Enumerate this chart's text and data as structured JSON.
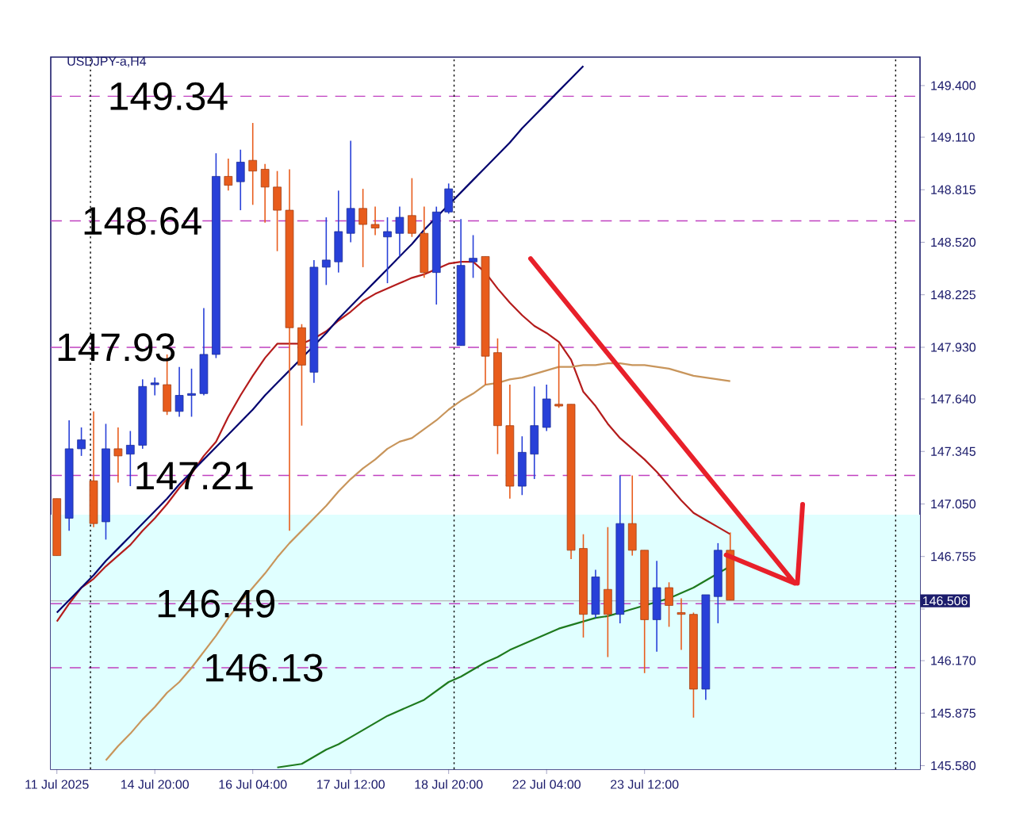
{
  "chart_data": {
    "type": "candlestick",
    "title": "USDJPY-a,H4",
    "categories": [
      "11 Jul 2025",
      null,
      null,
      null,
      null,
      null,
      null,
      null,
      "14 Jul 20:00",
      null,
      null,
      null,
      null,
      null,
      null,
      null,
      "16 Jul 04:00",
      null,
      null,
      null,
      null,
      null,
      null,
      null,
      "17 Jul 12:00",
      null,
      null,
      null,
      null,
      null,
      null,
      null,
      "18 Jul 20:00",
      null,
      null,
      null,
      null,
      null,
      null,
      null,
      "22 Jul 04:00",
      null,
      null,
      null,
      null,
      null,
      null,
      null,
      "23 Jul 12:00",
      null,
      null,
      null,
      null,
      null,
      null,
      null,
      null,
      null,
      null,
      null,
      null,
      null,
      null,
      null,
      null,
      null,
      null,
      null,
      null,
      null,
      null
    ],
    "ohlc": [
      [
        147.08,
        147.08,
        146.76,
        146.76
      ],
      [
        146.97,
        147.52,
        146.9,
        147.36
      ],
      [
        147.36,
        147.48,
        147.32,
        147.41
      ],
      [
        147.18,
        147.57,
        146.92,
        146.94
      ],
      [
        146.95,
        147.5,
        146.85,
        147.36
      ],
      [
        147.36,
        147.48,
        147.17,
        147.32
      ],
      [
        147.33,
        147.46,
        147.15,
        147.38
      ],
      [
        147.38,
        147.75,
        147.36,
        147.71
      ],
      [
        147.72,
        147.76,
        147.66,
        147.73
      ],
      [
        147.72,
        147.89,
        147.55,
        147.57
      ],
      [
        147.57,
        147.82,
        147.54,
        147.66
      ],
      [
        147.66,
        147.81,
        147.54,
        147.67
      ],
      [
        147.67,
        148.15,
        147.66,
        147.89
      ],
      [
        147.89,
        149.02,
        147.87,
        148.89
      ],
      [
        148.89,
        148.99,
        148.81,
        148.84
      ],
      [
        148.86,
        149.04,
        148.7,
        148.97
      ],
      [
        148.98,
        149.19,
        148.73,
        148.92
      ],
      [
        148.93,
        148.96,
        148.63,
        148.83
      ],
      [
        148.83,
        148.92,
        148.47,
        148.7
      ],
      [
        148.7,
        148.93,
        146.9,
        148.04
      ],
      [
        148.04,
        148.06,
        147.49,
        147.83
      ],
      [
        147.79,
        148.42,
        147.73,
        148.38
      ],
      [
        148.38,
        148.66,
        148.28,
        148.42
      ],
      [
        148.41,
        148.81,
        148.35,
        148.58
      ],
      [
        148.57,
        149.09,
        148.52,
        148.71
      ],
      [
        148.71,
        148.82,
        148.38,
        148.62
      ],
      [
        148.62,
        148.72,
        148.56,
        148.6
      ],
      [
        148.55,
        148.66,
        148.29,
        148.58
      ],
      [
        148.57,
        148.72,
        148.44,
        148.66
      ],
      [
        148.67,
        148.88,
        148.55,
        148.57
      ],
      [
        148.57,
        148.72,
        148.32,
        148.35
      ],
      [
        148.35,
        148.72,
        148.17,
        148.69
      ],
      [
        148.69,
        148.85,
        148.68,
        148.82
      ],
      [
        147.94,
        148.65,
        147.94,
        148.39
      ],
      [
        148.41,
        148.56,
        148.32,
        148.43
      ],
      [
        148.44,
        148.44,
        147.72,
        147.88
      ],
      [
        147.9,
        147.98,
        147.33,
        147.49
      ],
      [
        147.49,
        147.72,
        147.08,
        147.15
      ],
      [
        147.15,
        147.43,
        147.1,
        147.34
      ],
      [
        147.33,
        147.71,
        147.19,
        147.49
      ],
      [
        147.48,
        147.72,
        147.46,
        147.64
      ],
      [
        147.61,
        147.95,
        147.59,
        147.6
      ],
      [
        147.61,
        147.61,
        146.74,
        146.79
      ],
      [
        146.8,
        146.88,
        146.3,
        146.43
      ],
      [
        146.43,
        146.68,
        146.41,
        146.64
      ],
      [
        146.57,
        146.92,
        146.19,
        146.43
      ],
      [
        146.43,
        147.21,
        146.38,
        146.94
      ],
      [
        146.94,
        147.21,
        146.76,
        146.79
      ],
      [
        146.79,
        146.79,
        146.1,
        146.4
      ],
      [
        146.4,
        146.73,
        146.22,
        146.58
      ],
      [
        146.58,
        146.61,
        146.36,
        146.48
      ],
      [
        146.44,
        146.52,
        146.23,
        146.43
      ],
      [
        146.43,
        146.44,
        145.85,
        146.01
      ],
      [
        146.01,
        146.54,
        145.95,
        146.54
      ],
      [
        146.53,
        146.83,
        146.38,
        146.79
      ],
      [
        146.79,
        146.89,
        146.51,
        146.51
      ],
      null,
      null,
      null,
      null,
      null,
      null,
      null,
      null,
      null,
      null,
      null,
      null,
      null,
      null,
      null
    ],
    "colors": [
      "#e85c1c",
      "#2840d8",
      "#2840d8",
      "#e85c1c",
      "#2840d8",
      "#e85c1c",
      "#2840d8",
      "#2840d8",
      "#2840d8",
      "#e85c1c",
      "#2840d8",
      "#2840d8",
      "#2840d8",
      "#2840d8",
      "#e85c1c",
      "#2840d8",
      "#e85c1c",
      "#e85c1c",
      "#e85c1c",
      "#e85c1c",
      "#e85c1c",
      "#2840d8",
      "#2840d8",
      "#2840d8",
      "#2840d8",
      "#e85c1c",
      "#e85c1c",
      "#2840d8",
      "#2840d8",
      "#e85c1c",
      "#e85c1c",
      "#2840d8",
      "#2840d8",
      "#2840d8",
      "#2840d8",
      "#e85c1c",
      "#e85c1c",
      "#e85c1c",
      "#2840d8",
      "#2840d8",
      "#2840d8",
      "#e85c1c",
      "#e85c1c",
      "#e85c1c",
      "#2840d8",
      "#e85c1c",
      "#2840d8",
      "#e85c1c",
      "#e85c1c",
      "#2840d8",
      "#e85c1c",
      "#e85c1c",
      "#e85c1c",
      "#2840d8",
      "#2840d8",
      "#e85c1c",
      null,
      null,
      null,
      null,
      null,
      null,
      null,
      null,
      null,
      null,
      null,
      null,
      null,
      null,
      null
    ],
    "series": [
      {
        "type": "line",
        "color": "#b41c1c",
        "values": [
          146.39,
          146.49,
          146.58,
          146.63,
          146.7,
          146.76,
          146.82,
          146.9,
          146.97,
          147.05,
          147.14,
          147.22,
          147.32,
          147.4,
          147.54,
          147.66,
          147.77,
          147.87,
          147.95,
          147.95,
          147.95,
          147.98,
          148.02,
          148.08,
          148.13,
          148.19,
          148.23,
          148.26,
          148.29,
          148.32,
          148.34,
          148.37,
          148.4,
          148.41,
          148.41,
          148.35,
          148.26,
          148.18,
          148.11,
          148.05,
          148.01,
          147.96,
          147.86,
          147.68,
          147.6,
          147.5,
          147.42,
          147.36,
          147.3,
          147.23,
          147.15,
          147.07,
          147.0,
          146.96,
          146.92,
          146.88,
          null,
          null,
          null,
          null,
          null,
          null,
          null,
          null,
          null,
          null,
          null,
          null,
          null,
          null,
          null
        ]
      },
      {
        "type": "line",
        "color": "#c8955b",
        "values": [
          null,
          null,
          null,
          null,
          145.61,
          145.69,
          145.76,
          145.84,
          145.91,
          145.99,
          146.05,
          146.13,
          146.22,
          146.31,
          146.41,
          146.5,
          146.58,
          146.66,
          146.75,
          146.83,
          146.9,
          146.97,
          147.04,
          147.12,
          147.19,
          147.25,
          147.3,
          147.36,
          147.4,
          147.42,
          147.47,
          147.52,
          147.58,
          147.63,
          147.67,
          147.72,
          147.73,
          147.75,
          147.76,
          147.78,
          147.8,
          147.82,
          147.82,
          147.83,
          147.83,
          147.84,
          147.84,
          147.83,
          147.83,
          147.82,
          147.81,
          147.79,
          147.77,
          147.76,
          147.75,
          147.74,
          null,
          null,
          null,
          null,
          null,
          null,
          null,
          null,
          null,
          null,
          null,
          null,
          null,
          null,
          null
        ]
      },
      {
        "type": "line",
        "color": "#1e7a1e",
        "values": [
          null,
          null,
          null,
          null,
          null,
          null,
          null,
          null,
          null,
          null,
          null,
          null,
          null,
          null,
          null,
          null,
          null,
          null,
          145.57,
          145.58,
          145.59,
          145.63,
          145.67,
          145.7,
          145.74,
          145.78,
          145.82,
          145.86,
          145.89,
          145.92,
          145.95,
          146.0,
          146.05,
          146.08,
          146.12,
          146.16,
          146.19,
          146.23,
          146.26,
          146.29,
          146.32,
          146.35,
          146.37,
          146.39,
          146.41,
          146.42,
          146.44,
          146.46,
          146.48,
          146.5,
          146.52,
          146.55,
          146.58,
          146.62,
          146.66,
          146.7,
          null,
          null,
          null,
          null,
          null,
          null,
          null,
          null,
          null,
          null,
          null,
          null,
          null,
          null,
          null
        ]
      },
      {
        "type": "line",
        "color": "#00006e",
        "values": [
          146.44,
          146.51,
          146.58,
          146.65,
          146.73,
          146.8,
          146.87,
          146.94,
          147.01,
          147.08,
          147.16,
          147.23,
          147.3,
          147.37,
          147.44,
          147.51,
          147.58,
          147.66,
          147.73,
          147.8,
          147.87,
          147.94,
          148.01,
          148.09,
          148.16,
          148.23,
          148.3,
          148.37,
          148.44,
          148.51,
          148.59,
          148.66,
          148.73,
          148.8,
          148.87,
          148.94,
          149.01,
          149.08,
          149.16,
          149.23,
          149.3,
          149.37,
          149.44,
          149.51,
          null,
          null,
          null,
          null,
          null,
          null,
          null,
          null,
          null,
          null,
          null,
          null,
          null,
          null,
          null,
          null,
          null,
          null,
          null,
          null,
          null,
          null,
          null,
          null,
          null,
          null,
          null
        ]
      }
    ],
    "ylim": [
      145.56,
      149.56
    ],
    "yticks": [
      {
        "value": 149.4,
        "label": "149.400"
      },
      {
        "value": 149.11,
        "label": "149.110"
      },
      {
        "value": 148.815,
        "label": "148.815"
      },
      {
        "value": 148.52,
        "label": "148.520"
      },
      {
        "value": 148.225,
        "label": "148.225"
      },
      {
        "value": 147.93,
        "label": "147.930"
      },
      {
        "value": 147.64,
        "label": "147.640"
      },
      {
        "value": 147.345,
        "label": "147.345"
      },
      {
        "value": 147.05,
        "label": "147.050"
      },
      {
        "value": 146.755,
        "label": "146.755"
      },
      {
        "value": 146.46,
        "label": null
      },
      {
        "value": 146.17,
        "label": "146.170"
      },
      {
        "value": 145.875,
        "label": "145.875"
      },
      {
        "value": 145.58,
        "label": "145.580"
      }
    ],
    "bands": [
      {
        "axis": "y",
        "from": 145.56,
        "to": 146.99,
        "color": "#e0ffff"
      }
    ],
    "ref_lines": [
      {
        "axis": "y",
        "value": 149.34,
        "color": "#c040c0",
        "line_style": "dashed"
      },
      {
        "axis": "y",
        "value": 148.64,
        "color": "#c040c0",
        "line_style": "dashed"
      },
      {
        "axis": "y",
        "value": 147.93,
        "color": "#c040c0",
        "line_style": "dashed"
      },
      {
        "axis": "y",
        "value": 147.21,
        "color": "#c040c0",
        "line_style": "dashed"
      },
      {
        "axis": "y",
        "value": 146.49,
        "color": "#c040c0",
        "line_style": "dashed"
      },
      {
        "axis": "y",
        "value": 146.13,
        "color": "#c040c0",
        "line_style": "dashed"
      },
      {
        "axis": "y",
        "value": 146.506,
        "label": "146.506",
        "color": "#b8b8b8",
        "line_style": "solid"
      }
    ],
    "grid": "x",
    "annotations": [
      {
        "text": "149.34",
        "y": 149.34
      },
      {
        "text": "148.64",
        "y": 148.64
      },
      {
        "text": "147.93",
        "y": 147.93
      },
      {
        "text": "147.21",
        "y": 147.21
      },
      {
        "text": "146.49",
        "y": 146.49
      },
      {
        "text": "146.13",
        "y": 146.13
      }
    ]
  }
}
